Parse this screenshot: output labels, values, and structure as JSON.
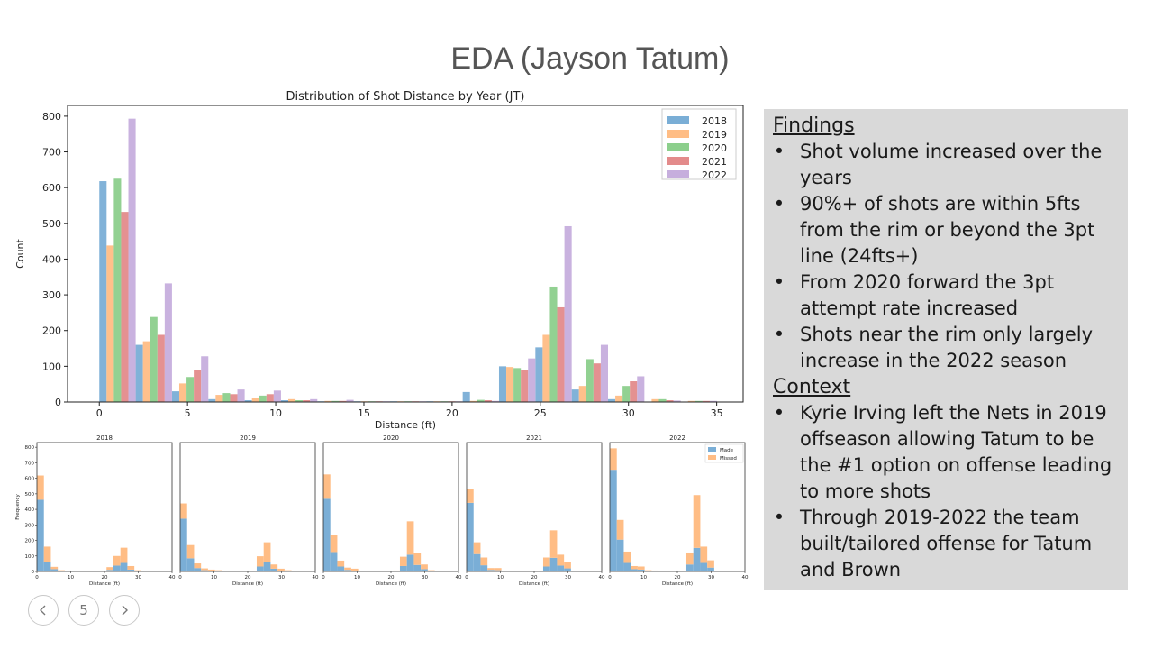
{
  "slide": {
    "title": "EDA (Jayson Tatum)",
    "page_number": "5"
  },
  "findings_panel": {
    "findings_heading": "Findings",
    "findings": [
      "Shot volume increased over the years",
      "90%+ of shots are within 5fts from the rim or beyond the 3pt line (24fts+)",
      "From 2020 forward the 3pt attempt rate increased",
      "Shots near the rim only largely increase in the 2022 season"
    ],
    "context_heading": "Context",
    "context": [
      "Kyrie Irving left the Nets in 2019 offseason allowing Tatum to be the #1 option on offense leading to more shots",
      "Through 2019-2022 the team built/tailored offense for Tatum and Brown"
    ]
  },
  "colors": {
    "2018": "#7aaed6",
    "2019": "#ffbd85",
    "2020": "#8ccf8c",
    "2021": "#e38b8b",
    "2022": "#c6aedd",
    "made": "#7aaed6",
    "missed": "#ffbd85"
  },
  "icons": {
    "prev": "chevron-left-icon",
    "next": "chevron-right-icon"
  },
  "chart_data": [
    {
      "type": "bar",
      "title": "Distribution of Shot Distance by Year (JT)",
      "xlabel": "Distance (ft)",
      "ylabel": "Count",
      "xlim": [
        -1.8,
        36.5
      ],
      "ylim": [
        0,
        830
      ],
      "xticks": [
        0,
        5,
        10,
        15,
        20,
        25,
        30,
        35
      ],
      "yticks": [
        0,
        100,
        200,
        300,
        400,
        500,
        600,
        700,
        800
      ],
      "legend_position": "top-right",
      "bin_edges": [
        0,
        2.06,
        4.12,
        6.18,
        8.24,
        10.3,
        12.36,
        14.42,
        16.48,
        18.54,
        20.6,
        22.66,
        24.72,
        26.78,
        28.84,
        30.9,
        32.96,
        35.02
      ],
      "series": [
        {
          "name": "2018",
          "values": [
            618,
            160,
            30,
            8,
            5,
            5,
            2,
            2,
            2,
            2,
            28,
            100,
            153,
            35,
            8,
            0,
            0
          ]
        },
        {
          "name": "2019",
          "values": [
            438,
            170,
            52,
            20,
            12,
            8,
            3,
            2,
            2,
            2,
            3,
            98,
            188,
            45,
            18,
            8,
            3
          ]
        },
        {
          "name": "2020",
          "values": [
            625,
            238,
            70,
            25,
            18,
            5,
            3,
            2,
            2,
            2,
            6,
            95,
            323,
            120,
            45,
            8,
            3
          ]
        },
        {
          "name": "2021",
          "values": [
            532,
            188,
            90,
            22,
            22,
            5,
            3,
            2,
            2,
            2,
            5,
            90,
            265,
            108,
            58,
            5,
            3
          ]
        },
        {
          "name": "2022",
          "values": [
            793,
            332,
            128,
            35,
            32,
            8,
            6,
            2,
            2,
            2,
            3,
            122,
            492,
            160,
            72,
            4,
            3
          ]
        }
      ]
    },
    {
      "type": "bar",
      "stacked": true,
      "xlabel": "Distance (ft)",
      "ylabel": "Frequency",
      "xlim": [
        0,
        40
      ],
      "ylim": [
        0,
        830
      ],
      "xticks": [
        0,
        10,
        20,
        30,
        40
      ],
      "yticks": [
        0,
        100,
        200,
        300,
        400,
        500,
        600,
        700,
        800
      ],
      "legend": [
        "Made",
        "Missed"
      ],
      "legend_position": "top-right",
      "bin_edges": [
        0,
        2.06,
        4.12,
        6.18,
        8.24,
        10.3,
        12.36,
        14.42,
        16.48,
        18.54,
        20.6,
        22.66,
        24.72,
        26.78,
        28.84,
        30.9,
        32.96,
        35.02
      ],
      "panels": [
        {
          "title": "2018",
          "made": [
            462,
            62,
            15,
            3,
            2,
            1,
            0,
            0,
            0,
            0,
            10,
            38,
            55,
            12,
            0,
            0,
            0
          ],
          "total": [
            618,
            160,
            30,
            8,
            5,
            5,
            2,
            2,
            2,
            2,
            28,
            100,
            153,
            35,
            8,
            0,
            0
          ]
        },
        {
          "title": "2019",
          "made": [
            340,
            85,
            22,
            8,
            5,
            3,
            1,
            0,
            0,
            0,
            1,
            32,
            62,
            18,
            5,
            2,
            1
          ],
          "total": [
            438,
            170,
            52,
            20,
            12,
            8,
            3,
            2,
            2,
            2,
            3,
            98,
            188,
            45,
            18,
            8,
            3
          ]
        },
        {
          "title": "2020",
          "made": [
            468,
            125,
            32,
            10,
            6,
            2,
            1,
            0,
            0,
            0,
            2,
            35,
            108,
            42,
            15,
            3,
            1
          ]
        },
        {
          "title": "2021",
          "made": [
            442,
            112,
            40,
            10,
            8,
            2,
            1,
            0,
            0,
            0,
            2,
            32,
            88,
            38,
            20,
            2,
            1
          ]
        },
        {
          "title": "2022",
          "made": [
            655,
            205,
            55,
            15,
            12,
            3,
            2,
            0,
            0,
            0,
            1,
            45,
            152,
            55,
            25,
            1,
            1
          ]
        }
      ]
    }
  ]
}
